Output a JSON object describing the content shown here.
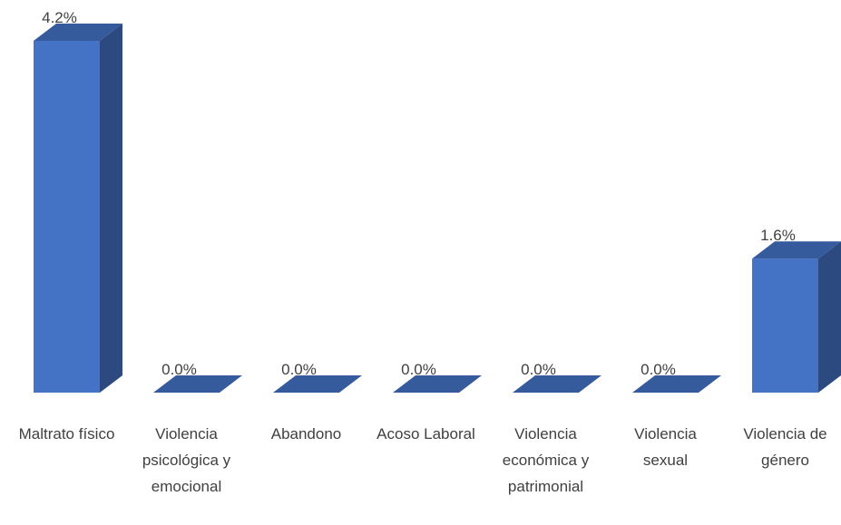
{
  "chart_data": {
    "type": "bar3d",
    "categories": [
      "Maltrato físico",
      "Violencia psicológica y emocional",
      "Abandono",
      "Acoso Laboral",
      "Violencia económica y patrimonial",
      "Violencia sexual",
      "Violencia de género"
    ],
    "values": [
      4.2,
      0,
      0,
      0,
      0,
      0,
      1.6
    ],
    "value_labels": [
      "4.2%",
      "0.0%",
      "0.0%",
      "0.0%",
      "0.0%",
      "0.0%",
      "1.6%"
    ],
    "color": "#4472c4"
  }
}
